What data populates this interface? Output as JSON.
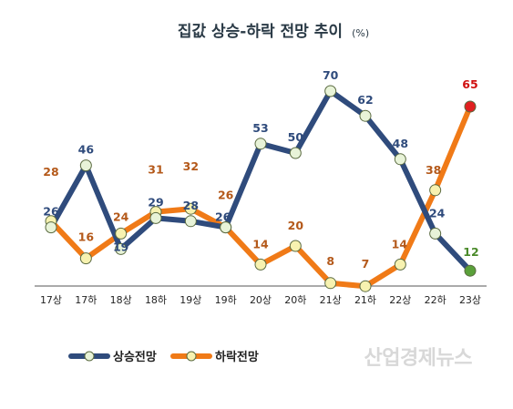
{
  "chart_data": {
    "type": "line",
    "title": "집값 상승-하락 전망 추이",
    "unit": "(%)",
    "categories": [
      "17상",
      "17하",
      "18상",
      "18하",
      "19상",
      "19하",
      "20상",
      "20하",
      "21상",
      "21하",
      "22상",
      "22하",
      "23상"
    ],
    "series": [
      {
        "name": "상승전망",
        "values": [
          26,
          46,
          19,
          29,
          28,
          26,
          53,
          50,
          70,
          62,
          48,
          24,
          12
        ],
        "color": "#2f4b7c"
      },
      {
        "name": "하락전망",
        "values": [
          28,
          16,
          24,
          31,
          32,
          26,
          14,
          20,
          8,
          7,
          14,
          38,
          65
        ],
        "color": "#f07a17"
      }
    ],
    "ylim": [
      0,
      80
    ],
    "grid": false,
    "legend_position": "bottom-left",
    "highlight_colors": {
      "last_up": "#5aa03a",
      "last_down": "#e02020",
      "up_label": "#2f4b7c",
      "down_label": "#b4591a",
      "last_up_label": "#4a8a2a",
      "last_down_label": "#d01010"
    },
    "watermark": "산업경제뉴스"
  }
}
